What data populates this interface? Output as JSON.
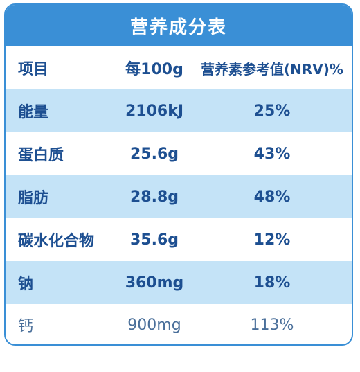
{
  "title": "营养成分表",
  "headers": {
    "item": "项目",
    "per100g": "每100g",
    "nrv": "营养素参考值(NRV)%"
  },
  "rows": [
    {
      "name": "能量",
      "amount": "2106kJ",
      "nrv": "25%"
    },
    {
      "name": "蛋白质",
      "amount": "25.6g",
      "nrv": "43%"
    },
    {
      "name": "脂肪",
      "amount": "28.8g",
      "nrv": "48%"
    },
    {
      "name": "碳水化合物",
      "amount": "35.6g",
      "nrv": "12%"
    },
    {
      "name": "钠",
      "amount": "360mg",
      "nrv": "18%"
    },
    {
      "name": "钙",
      "amount": "900mg",
      "nrv": "113%"
    }
  ]
}
